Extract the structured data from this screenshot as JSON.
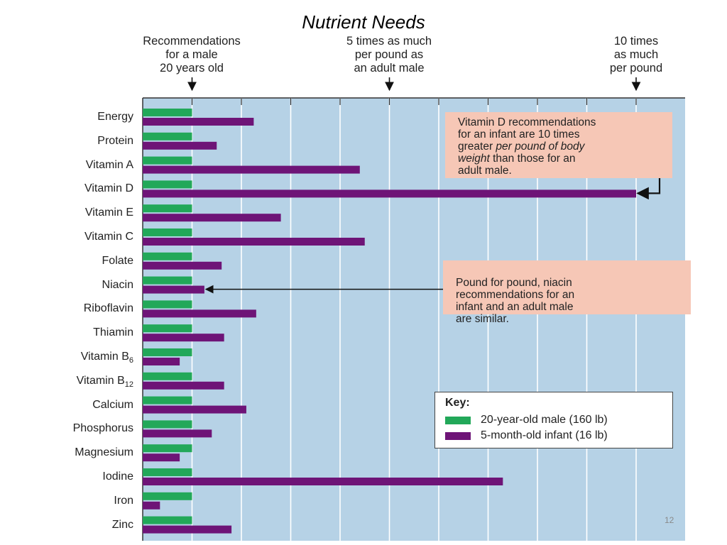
{
  "slide": {
    "title": "Nutrient Needs",
    "page_number": "12"
  },
  "top_labels": [
    {
      "text": "Recommendations\nfor a male\n20 years old",
      "value": 1
    },
    {
      "text": "5 times as much\nper pound as\nan adult male",
      "value": 5
    },
    {
      "text": "10 times\nas much\nper pound",
      "value": 10
    }
  ],
  "chart_data": {
    "type": "bar",
    "orientation": "horizontal",
    "title": "",
    "xlabel": "",
    "ylabel": "",
    "xlim": [
      0,
      11
    ],
    "grid": true,
    "categories": [
      "Energy",
      "Protein",
      "Vitamin A",
      "Vitamin D",
      "Vitamin E",
      "Vitamin C",
      "Folate",
      "Niacin",
      "Riboflavin",
      "Thiamin",
      "Vitamin B6",
      "Vitamin B12",
      "Calcium",
      "Phosphorus",
      "Magnesium",
      "Iodine",
      "Iron",
      "Zinc"
    ],
    "series": [
      {
        "name": "20-year-old male (160 lb)",
        "color": "#22a859",
        "values": [
          1,
          1,
          1,
          1,
          1,
          1,
          1,
          1,
          1,
          1,
          1,
          1,
          1,
          1,
          1,
          1,
          1,
          1
        ]
      },
      {
        "name": "5-month-old infant (16 lb)",
        "color": "#6e1477",
        "values": [
          2.25,
          1.5,
          4.4,
          10,
          2.8,
          4.5,
          1.6,
          1.25,
          2.3,
          1.65,
          0.75,
          1.65,
          2.1,
          1.4,
          0.75,
          7.3,
          0.35,
          1.8
        ]
      }
    ],
    "legend_position": "bottom-right",
    "legend_title": "Key:"
  },
  "callouts": {
    "vitamin_d": {
      "line1": "Vitamin D recommendations",
      "line2": "for an infant are 10 times",
      "line3_plain": "greater ",
      "line3_italic": "per pound of body",
      "line4_italic": "weight",
      "line4_plain": " than those for an",
      "line5": "adult male.",
      "target": "Vitamin D"
    },
    "niacin": {
      "text": "Pound for pound, niacin\nrecommendations for an\ninfant and an adult male\nare similar.",
      "target": "Niacin"
    }
  },
  "colors": {
    "plot_background": "#b6d2e6",
    "gridline": "#ffffff",
    "callout_background": "#f6c7b6"
  }
}
